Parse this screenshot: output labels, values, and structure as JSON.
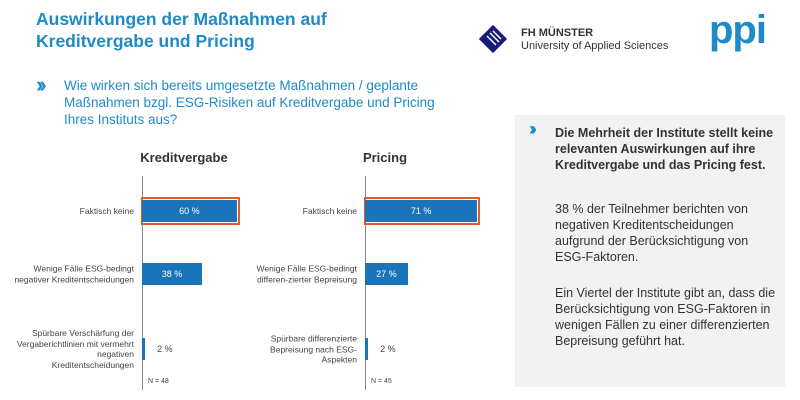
{
  "header": {
    "title": "Auswirkungen der Maßnahmen auf Kreditvergabe und Pricing",
    "logo_fh_line1": "FH MÜNSTER",
    "logo_fh_line2": "University of Applied Sciences",
    "logo_ppi": "ppi"
  },
  "question": "Wie wirken sich bereits umgesetzte Maßnahmen / geplante Maßnahmen bzgl. ESG-Risiken auf Kreditvergabe und Pricing Ihres Instituts aus?",
  "panel": {
    "headline": "Die Mehrheit der Institute stellt keine relevanten Auswirkungen auf ihre Kreditvergabe und das Pricing fest.",
    "p1": "38 % der Teilnehmer berichten von negativen Kreditentscheidungen aufgrund der Berücksichtigung von ESG-Faktoren.",
    "p2": "Ein Viertel der Institute gibt an, dass die Berücksichtigung von ESG-Faktoren in wenigen Fällen zu einer differenzierten Bepreisung geführt hat."
  },
  "chart_data": [
    {
      "type": "bar",
      "orientation": "horizontal",
      "title": "Kreditvergabe",
      "categories": [
        "Faktisch keine",
        "Wenige Fälle ESG-bedingt negativer Kreditentscheidungen",
        "Spürbare Verschärfung der Vergaberichtlinien mit vermehrt negativen Kreditentscheidungen"
      ],
      "values": [
        60,
        38,
        2
      ],
      "labels": [
        "60 %",
        "38 %",
        "2 %"
      ],
      "highlighted": [
        0
      ],
      "note": "N = 48",
      "color": "#1a74b9",
      "highlight_color": "#e05a2b"
    },
    {
      "type": "bar",
      "orientation": "horizontal",
      "title": "Pricing",
      "categories": [
        "Faktisch keine",
        "Wenige Fälle ESG-bedingt differen-zierter Bepreisung",
        "Spürbare differenzierte Bepreisung nach ESG-Aspekten"
      ],
      "values": [
        71,
        27,
        2
      ],
      "labels": [
        "71 %",
        "27 %",
        "2 %"
      ],
      "highlighted": [
        0
      ],
      "note": "N = 45",
      "color": "#1a74b9",
      "highlight_color": "#e05a2b"
    }
  ]
}
